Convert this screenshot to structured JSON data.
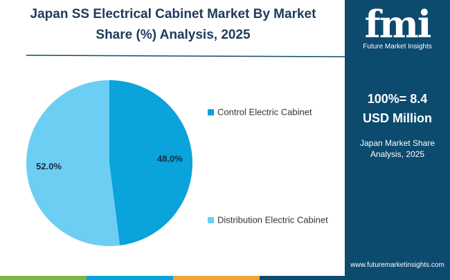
{
  "chart_data": {
    "type": "pie",
    "title": "Japan SS Electrical Cabinet Market By Market Share (%) Analysis, 2025",
    "categories": [
      "Control Electric Cabinet",
      "Distribution Electric Cabinet"
    ],
    "values": [
      48.0,
      52.0
    ],
    "value_labels": [
      "48.0%",
      "52.0%"
    ],
    "colors": [
      "#0aa3dc",
      "#6ccef2"
    ]
  },
  "panel": {
    "headline": "100%= 8.4",
    "unit": "USD Million",
    "caption": "Japan Market Share Analysis, 2025"
  },
  "brand": {
    "logo": "fmi",
    "name": "Future Market Insights",
    "url": "www.futuremarketinsights.com"
  }
}
